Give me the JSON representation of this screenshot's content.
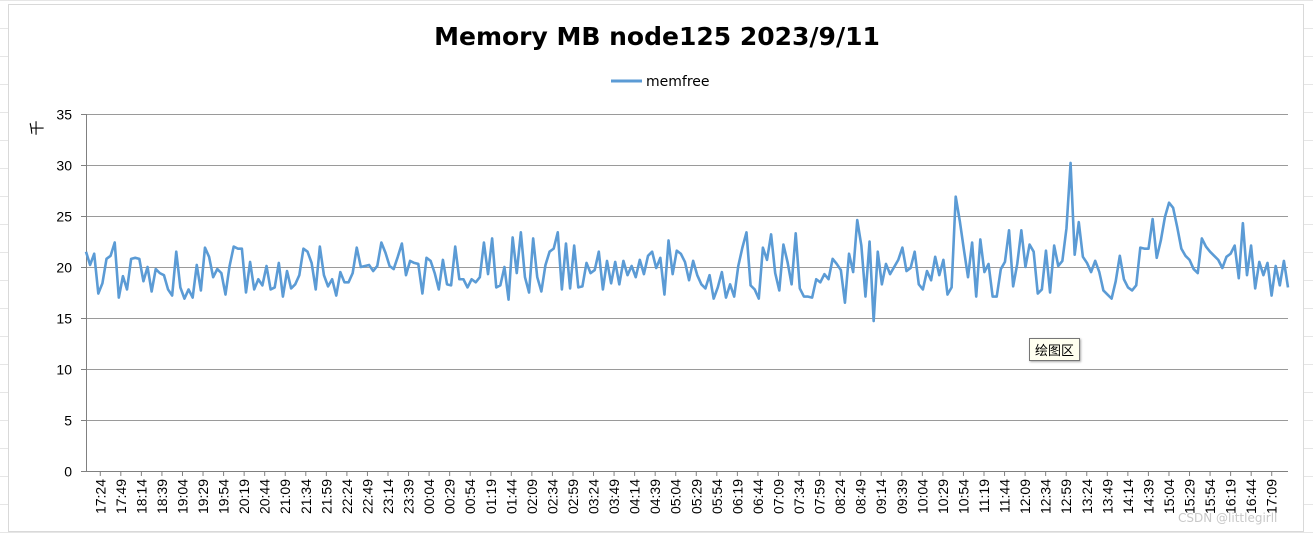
{
  "tooltip": "绘图区",
  "watermark": "CSDN @littlegirll",
  "chart_data": {
    "type": "line",
    "title": "Memory MB node125  2023/9/11",
    "ylabel": "千",
    "ylim": [
      0,
      35
    ],
    "yticks": [
      0,
      5,
      10,
      15,
      20,
      25,
      30,
      35
    ],
    "grid": true,
    "legend": "top-center",
    "x_tick_labels": [
      "17:24",
      "17:49",
      "18:14",
      "18:39",
      "19:04",
      "19:29",
      "19:54",
      "20:19",
      "20:44",
      "21:09",
      "21:34",
      "21:59",
      "22:24",
      "22:49",
      "23:14",
      "23:39",
      "00:04",
      "00:29",
      "00:54",
      "01:19",
      "01:44",
      "02:09",
      "02:34",
      "02:59",
      "03:24",
      "03:49",
      "04:14",
      "04:39",
      "05:04",
      "05:29",
      "05:54",
      "06:19",
      "06:44",
      "07:09",
      "07:34",
      "07:59",
      "08:24",
      "08:49",
      "09:14",
      "09:39",
      "10:04",
      "10:29",
      "10:54",
      "11:19",
      "11:44",
      "12:09",
      "12:34",
      "12:59",
      "13:24",
      "13:49",
      "14:14",
      "14:39",
      "15:04",
      "15:29",
      "15:54",
      "16:19",
      "16:44",
      "17:09"
    ],
    "series": [
      {
        "name": "memfree",
        "color": "#5b9bd5",
        "values": [
          21.5,
          20.2,
          21.3,
          17.4,
          18.4,
          20.8,
          21.1,
          22.4,
          17.0,
          19.1,
          17.8,
          20.8,
          20.9,
          20.8,
          18.6,
          20.0,
          17.6,
          19.8,
          19.4,
          19.2,
          17.8,
          17.2,
          21.5,
          18.0,
          16.9,
          17.8,
          17.0,
          20.2,
          17.7,
          21.9,
          21.0,
          19.0,
          19.8,
          19.4,
          17.3,
          20.1,
          22.0,
          21.8,
          21.8,
          17.5,
          20.5,
          17.8,
          18.8,
          18.2,
          20.1,
          17.8,
          18.0,
          20.4,
          17.1,
          19.6,
          17.9,
          18.3,
          19.2,
          21.8,
          21.5,
          20.4,
          17.8,
          22.0,
          19.2,
          18.1,
          18.8,
          17.2,
          19.5,
          18.5,
          18.5,
          19.4,
          21.9,
          20.0,
          20.1,
          20.2,
          19.6,
          20.1,
          22.4,
          21.4,
          20.1,
          19.8,
          21.0,
          22.3,
          19.2,
          20.6,
          20.4,
          20.3,
          17.4,
          20.9,
          20.6,
          19.4,
          17.8,
          20.7,
          18.3,
          18.2,
          22.0,
          18.8,
          18.8,
          18.0,
          18.8,
          18.5,
          19.0,
          22.4,
          19.3,
          22.8,
          18.0,
          18.2,
          20.0,
          16.8,
          22.9,
          19.4,
          23.4,
          19.0,
          17.5,
          22.8,
          19.0,
          17.6,
          20.2,
          21.5,
          21.8,
          23.4,
          17.8,
          22.3,
          17.9,
          22.1,
          18.0,
          18.1,
          20.4,
          19.4,
          19.7,
          21.5,
          17.8,
          20.6,
          18.4,
          20.5,
          18.3,
          20.6,
          19.2,
          20.1,
          19.0,
          20.7,
          19.3,
          21.1,
          21.5,
          19.9,
          20.9,
          17.3,
          22.6,
          19.3,
          21.6,
          21.3,
          20.5,
          18.7,
          20.6,
          19.2,
          18.3,
          17.9,
          19.2,
          16.9,
          18.0,
          19.5,
          17.0,
          18.3,
          17.1,
          20.1,
          21.9,
          23.4,
          18.2,
          17.8,
          16.9,
          21.9,
          20.7,
          23.2,
          19.4,
          17.7,
          22.2,
          20.5,
          18.3,
          23.3,
          17.9,
          17.1,
          17.1,
          17.0,
          18.8,
          18.5,
          19.3,
          18.8,
          20.8,
          20.3,
          19.7,
          16.5,
          21.3,
          19.5,
          24.6,
          22.1,
          17.1,
          22.5,
          14.7,
          21.5,
          18.3,
          20.3,
          19.3,
          20.0,
          20.7,
          21.9,
          19.6,
          19.9,
          21.5,
          18.3,
          17.8,
          19.6,
          18.7,
          21.0,
          19.2,
          20.7,
          17.3,
          18.0,
          26.9,
          24.5,
          21.7,
          19.0,
          22.4,
          17.1,
          22.7,
          19.5,
          20.3,
          17.1,
          17.1,
          19.8,
          20.5,
          23.6,
          18.1,
          20.3,
          23.6,
          20.0,
          22.2,
          21.5,
          17.4,
          17.8,
          21.6,
          17.5,
          22.1,
          20.1,
          20.6,
          23.8,
          30.2,
          21.2,
          24.4,
          21.0,
          20.4,
          19.5,
          20.6,
          19.5,
          17.7,
          17.3,
          16.9,
          18.6,
          21.1,
          18.8,
          18.0,
          17.7,
          18.2,
          21.9,
          21.8,
          21.8,
          24.7,
          20.9,
          22.6,
          24.9,
          26.3,
          25.8,
          23.9,
          21.8,
          21.1,
          20.7,
          19.8,
          19.4,
          22.8,
          22.0,
          21.5,
          21.1,
          20.7,
          19.9,
          21.0,
          21.3,
          22.1,
          18.9,
          24.3,
          19.2,
          22.1,
          17.9,
          20.5,
          19.2,
          20.4,
          17.2,
          20.1,
          18.2,
          20.6,
          18.0
        ]
      }
    ]
  }
}
